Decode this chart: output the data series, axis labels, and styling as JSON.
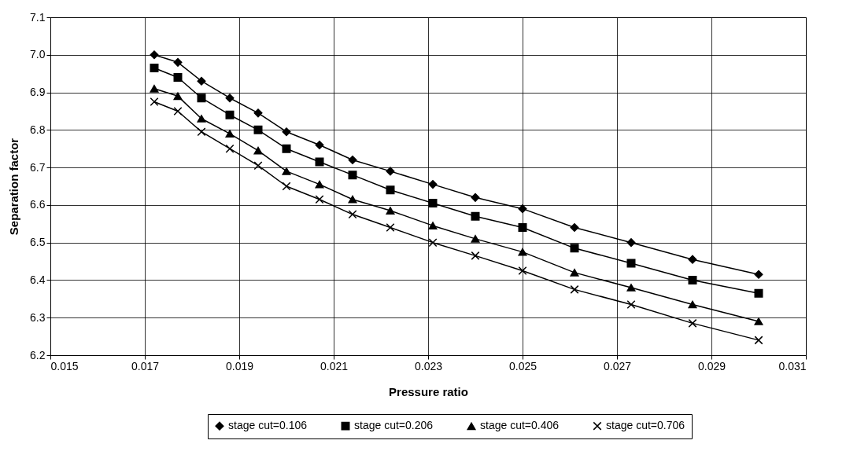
{
  "chart_data": {
    "type": "line",
    "xlabel": "Pressure ratio",
    "ylabel": "Separation factor",
    "x": [
      0.0172,
      0.0177,
      0.0182,
      0.0188,
      0.0194,
      0.02,
      0.0207,
      0.0214,
      0.0222,
      0.0231,
      0.024,
      0.025,
      0.0261,
      0.0273,
      0.0286,
      0.03
    ],
    "series": [
      {
        "name": "stage cut=0.106",
        "color": "#000000",
        "marker": "diamond",
        "values": [
          7.0,
          6.98,
          6.93,
          6.885,
          6.845,
          6.795,
          6.76,
          6.72,
          6.69,
          6.655,
          6.62,
          6.59,
          6.54,
          6.5,
          6.455,
          6.415
        ]
      },
      {
        "name": "stage cut=0.206",
        "color": "#000000",
        "marker": "square",
        "values": [
          6.965,
          6.94,
          6.885,
          6.84,
          6.8,
          6.75,
          6.715,
          6.68,
          6.64,
          6.605,
          6.57,
          6.54,
          6.485,
          6.445,
          6.4,
          6.365
        ]
      },
      {
        "name": "stage cut=0.406",
        "color": "#000000",
        "marker": "triangle",
        "values": [
          6.91,
          6.89,
          6.83,
          6.79,
          6.745,
          6.69,
          6.655,
          6.615,
          6.585,
          6.545,
          6.51,
          6.475,
          6.42,
          6.38,
          6.335,
          6.29
        ]
      },
      {
        "name": "stage cut=0.706",
        "color": "#000000",
        "marker": "cross",
        "values": [
          6.875,
          6.85,
          6.795,
          6.75,
          6.705,
          6.65,
          6.615,
          6.575,
          6.54,
          6.5,
          6.465,
          6.425,
          6.375,
          6.335,
          6.285,
          6.24
        ]
      }
    ],
    "xlim": [
      0.015,
      0.031
    ],
    "xticks": [
      0.015,
      0.017,
      0.019,
      0.021,
      0.023,
      0.025,
      0.027,
      0.029,
      0.031
    ],
    "ylim": [
      6.2,
      7.1
    ],
    "yticks": [
      6.2,
      6.3,
      6.4,
      6.5,
      6.6,
      6.7,
      6.8,
      6.9,
      {
        "value": 7,
        "label": "7.0"
      },
      7.1
    ],
    "grid": true,
    "legend": "bottom",
    "line_style": "solid"
  }
}
